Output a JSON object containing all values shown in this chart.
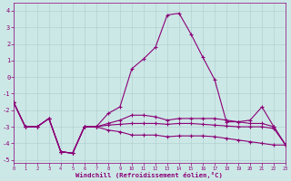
{
  "xlabel": "Windchill (Refroidissement éolien,°C)",
  "xlim": [
    0,
    23
  ],
  "ylim": [
    -5.2,
    4.5
  ],
  "yticks": [
    -5,
    -4,
    -3,
    -2,
    -1,
    0,
    1,
    2,
    3,
    4
  ],
  "xticks": [
    0,
    1,
    2,
    3,
    4,
    5,
    6,
    7,
    8,
    9,
    10,
    11,
    12,
    13,
    14,
    15,
    16,
    17,
    18,
    19,
    20,
    21,
    22,
    23
  ],
  "bg_color": "#cce8e6",
  "line_color": "#8b0077",
  "grid_color": "#aacccc",
  "lines": [
    [
      -1.5,
      -3.0,
      -3.0,
      -2.5,
      -4.5,
      -4.6,
      -3.0,
      -3.0,
      -2.2,
      -1.8,
      0.5,
      1.1,
      1.8,
      3.75,
      3.85,
      2.6,
      1.2,
      -0.15,
      -2.7,
      -2.7,
      -2.6,
      -1.8,
      -3.0,
      -4.1
    ],
    [
      -1.5,
      -3.0,
      -3.0,
      -2.5,
      -4.5,
      -4.6,
      -3.0,
      -3.0,
      -2.8,
      -2.6,
      -2.3,
      -2.3,
      -2.4,
      -2.6,
      -2.5,
      -2.5,
      -2.5,
      -2.5,
      -2.6,
      -2.7,
      -2.8,
      -2.8,
      -3.0,
      -4.1
    ],
    [
      -1.5,
      -3.0,
      -3.0,
      -2.5,
      -4.5,
      -4.6,
      -3.0,
      -3.0,
      -2.9,
      -2.85,
      -2.8,
      -2.8,
      -2.8,
      -2.85,
      -2.8,
      -2.8,
      -2.85,
      -2.9,
      -2.95,
      -3.0,
      -3.0,
      -3.0,
      -3.1,
      -4.1
    ],
    [
      -1.5,
      -3.0,
      -3.0,
      -2.5,
      -4.5,
      -4.6,
      -3.0,
      -3.0,
      -3.2,
      -3.3,
      -3.5,
      -3.5,
      -3.5,
      -3.6,
      -3.55,
      -3.55,
      -3.55,
      -3.6,
      -3.7,
      -3.8,
      -3.9,
      -4.0,
      -4.1,
      -4.1
    ]
  ]
}
